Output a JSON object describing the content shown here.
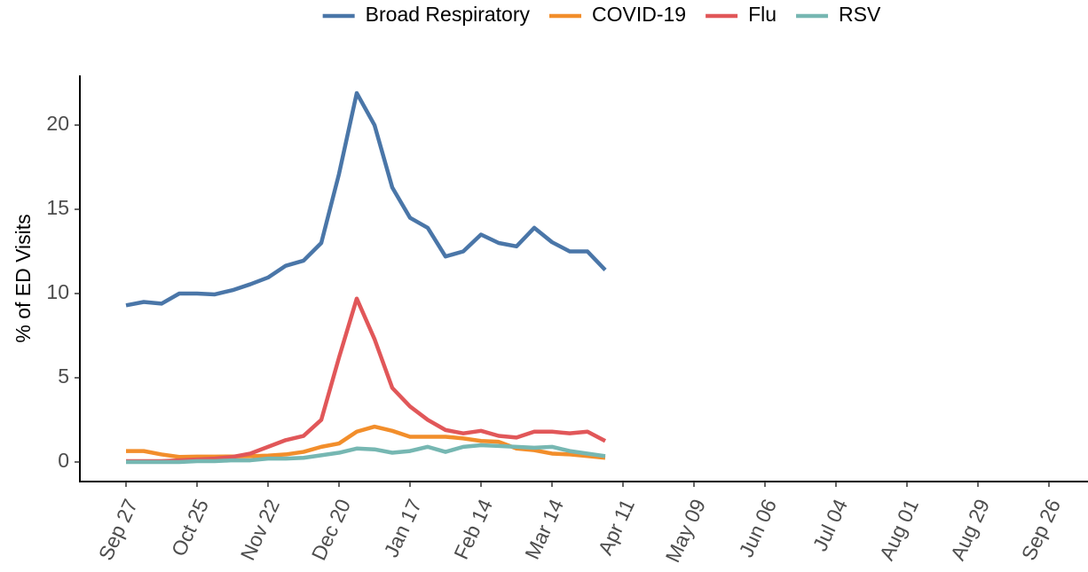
{
  "chart_data": {
    "type": "line",
    "y_label": "% of ED Visits",
    "categories": [
      "Sep 27",
      null,
      null,
      null,
      "Oct 25",
      null,
      null,
      null,
      "Nov 22",
      null,
      null,
      null,
      "Dec 20",
      null,
      null,
      null,
      "Jan 17",
      null,
      null,
      null,
      "Feb 14",
      null,
      null,
      null,
      "Mar 14",
      null,
      null,
      null,
      "Apr 11",
      null,
      null,
      null,
      "May 09",
      null,
      null,
      null,
      "Jun 06",
      null,
      null,
      null,
      "Jul 04",
      null,
      null,
      null,
      "Aug 01",
      null,
      null,
      null,
      "Aug 29",
      null,
      null,
      null,
      "Sep 26"
    ],
    "series": [
      {
        "name": "Broad Respiratory",
        "color": "#4a76a8",
        "values": [
          9.3,
          9.5,
          9.4,
          10.0,
          10.0,
          9.95,
          10.2,
          10.55,
          10.95,
          11.65,
          11.95,
          13.0,
          17.1,
          21.9,
          20.0,
          16.3,
          14.5,
          13.9,
          12.2,
          12.5,
          13.5,
          13.0,
          12.8,
          13.9,
          13.05,
          12.5,
          12.5,
          11.4,
          null,
          null,
          null,
          null,
          null,
          null,
          null,
          null,
          null,
          null,
          null,
          null,
          null,
          null,
          null,
          null,
          null,
          null,
          null,
          null,
          null,
          null,
          null,
          null,
          null
        ]
      },
      {
        "name": "COVID-19",
        "color": "#f28e2b",
        "values": [
          0.65,
          0.65,
          0.45,
          0.3,
          0.32,
          0.32,
          0.33,
          0.35,
          0.38,
          0.45,
          0.6,
          0.9,
          1.1,
          1.8,
          2.1,
          1.85,
          1.5,
          1.5,
          1.5,
          1.4,
          1.25,
          1.2,
          0.8,
          0.7,
          0.5,
          0.45,
          0.35,
          0.25,
          null,
          null,
          null,
          null,
          null,
          null,
          null,
          null,
          null,
          null,
          null,
          null,
          null,
          null,
          null,
          null,
          null,
          null,
          null,
          null,
          null,
          null,
          null,
          null,
          null
        ]
      },
      {
        "name": "Flu",
        "color": "#e15759",
        "values": [
          0.05,
          0.05,
          0.05,
          0.1,
          0.15,
          0.2,
          0.3,
          0.5,
          0.9,
          1.3,
          1.55,
          2.5,
          6.2,
          9.7,
          7.3,
          4.4,
          3.3,
          2.5,
          1.9,
          1.7,
          1.85,
          1.55,
          1.45,
          1.8,
          1.8,
          1.7,
          1.8,
          1.25,
          null,
          null,
          null,
          null,
          null,
          null,
          null,
          null,
          null,
          null,
          null,
          null,
          null,
          null,
          null,
          null,
          null,
          null,
          null,
          null,
          null,
          null,
          null,
          null,
          null
        ]
      },
      {
        "name": "RSV",
        "color": "#76b7b2",
        "values": [
          0,
          0,
          0,
          0,
          0.05,
          0.05,
          0.1,
          0.1,
          0.2,
          0.2,
          0.25,
          0.4,
          0.55,
          0.8,
          0.75,
          0.55,
          0.65,
          0.9,
          0.6,
          0.9,
          1.0,
          0.95,
          0.9,
          0.85,
          0.9,
          0.65,
          0.5,
          0.35,
          null,
          null,
          null,
          null,
          null,
          null,
          null,
          null,
          null,
          null,
          null,
          null,
          null,
          null,
          null,
          null,
          null,
          null,
          null,
          null,
          null,
          null,
          null,
          null,
          null
        ]
      }
    ],
    "ylim": [
      -1.16,
      22.95
    ],
    "yticks": [
      0,
      5,
      10,
      15,
      20
    ],
    "grid": false,
    "legend": "top"
  }
}
